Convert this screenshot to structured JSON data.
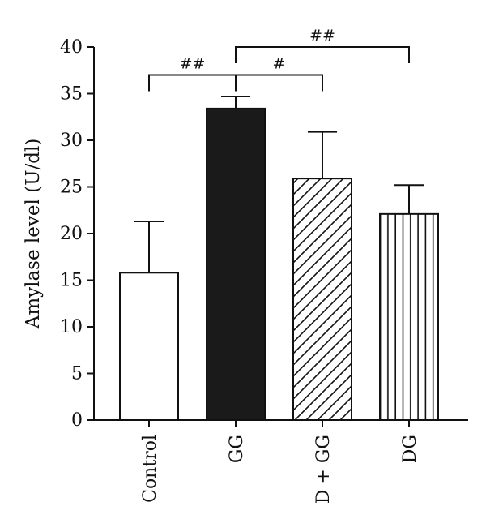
{
  "chart_data": {
    "type": "bar",
    "ylabel": "Amylase level (U/dl)",
    "ylim": [
      0,
      40
    ],
    "yticks": [
      0,
      5,
      10,
      15,
      20,
      25,
      30,
      35,
      40
    ],
    "categories": [
      "Control",
      "GG",
      "D + GG",
      "DG"
    ],
    "values": [
      15.8,
      33.4,
      25.9,
      22.1
    ],
    "errors": [
      5.5,
      1.3,
      5.0,
      3.1
    ],
    "bar_fills": [
      "white",
      "black",
      "diagonal-hatch",
      "vertical-lines"
    ],
    "grid": false,
    "significance": [
      {
        "from": "Control",
        "to": "GG",
        "label": "##",
        "level": 37
      },
      {
        "from": "GG",
        "to": "D + GG",
        "label": "#",
        "level": 37
      },
      {
        "from": "GG",
        "to": "DG",
        "label": "##",
        "level": 40
      }
    ]
  },
  "colors": {
    "axis": "#111111",
    "bar_dark": "#1a1a1a",
    "bar_light": "#ffffff"
  }
}
